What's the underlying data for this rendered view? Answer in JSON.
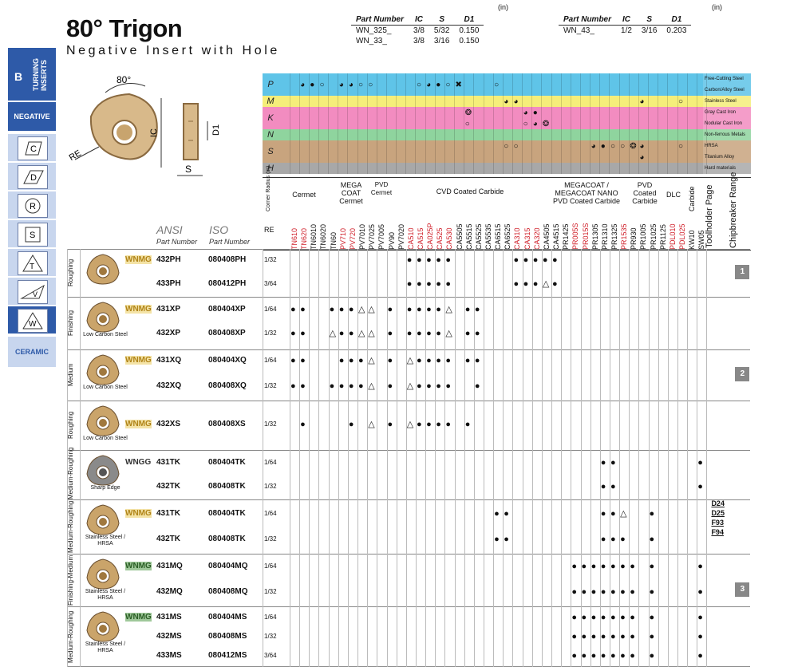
{
  "header": {
    "title": "80° Trigon",
    "subtitle": "Negative Insert with Hole",
    "unit": "(in)",
    "dim_columns": [
      "Part Number",
      "IC",
      "S",
      "D1"
    ],
    "dim_table_1": [
      [
        "WN_325_",
        "3/8",
        "5/32",
        "0.150"
      ],
      [
        "WN_33_",
        "3/8",
        "3/16",
        "0.150"
      ]
    ],
    "dim_table_2": [
      [
        "WN_43_",
        "1/2",
        "3/16",
        "0.203"
      ]
    ]
  },
  "sidebar": {
    "section_letter": "B",
    "section_label": "TURNING INSERTS",
    "negative_label": "NEGATIVE",
    "shapes": [
      "C",
      "D",
      "R",
      "S",
      "T",
      "V",
      "W"
    ],
    "ceramic_label": "CERAMIC"
  },
  "diagram_labels": {
    "angle": "80°",
    "ic": "IC",
    "re": "RE",
    "d1": "D1",
    "s": "S"
  },
  "materials": [
    {
      "letter": "P",
      "names": [
        "Free-Cutting Steel",
        "Carbon/Alloy Steel"
      ],
      "color": "#5fc4e8"
    },
    {
      "letter": "M",
      "names": [
        "Stainless Steel"
      ],
      "color": "#f5ee7a"
    },
    {
      "letter": "K",
      "names": [
        "Gray Cast Iron",
        "Nodular Cast Iron"
      ],
      "color": "#f28cc0"
    },
    {
      "letter": "N",
      "names": [
        "Non-ferrous Metals"
      ],
      "color": "#8fd49e"
    },
    {
      "letter": "S",
      "names": [
        "HRSA",
        "Titanium Alloy"
      ],
      "color": "#c8a47e"
    },
    {
      "letter": "H",
      "names": [
        "Hard materials"
      ],
      "color": "#a8a8a8"
    }
  ],
  "grade_groups": {
    "corner_radius": "Corner Radius (in)",
    "cermet": "Cermet",
    "megacoat_cermet": "MEGA COAT Cermet",
    "pvd_cermet": "PVD Cermet",
    "cvd": "CVD Coated Carbide",
    "megacoat_nano": "MEGACOAT / MEGACOAT NANO PVD Coated Carbide",
    "pvd_carbide": "PVD Coated Carbide",
    "dlc": "DLC",
    "carbide": "Carbide",
    "toolholder": "Toolholder Page",
    "chipbreaker": "Chipbreaker Range",
    "re": "RE"
  },
  "grades": [
    "TN610",
    "TN620",
    "TN6010",
    "TN6020",
    "TN60",
    "PV710",
    "PV720",
    "PV7010",
    "PV7025",
    "PV7005",
    "PV90",
    "PV7020",
    "CA510",
    "CA515",
    "CA025P",
    "CA525",
    "CA530",
    "CA5505",
    "CA5515",
    "CA5525",
    "CA5535",
    "CA6515",
    "CA6525",
    "CA310",
    "CA315",
    "CA320",
    "CA4505",
    "CA4515",
    "PR1425",
    "PR005S",
    "PR015S",
    "PR1305",
    "PR1310",
    "PR1325",
    "PR1535",
    "PR930",
    "PR1005",
    "PR1025",
    "PR1125",
    "PDL010",
    "PDL025",
    "KW10",
    "SW05"
  ],
  "grade_colors": {
    "red": "#d0202a",
    "black": "#111111"
  },
  "col_headers": {
    "ansi": "ANSI",
    "iso": "ISO",
    "part_number": "Part Number"
  },
  "rows": [
    {
      "section": "Roughing",
      "prefix": "WNMG",
      "ansi": "432PH",
      "iso": "080408PH",
      "re": "1/32"
    },
    {
      "section": "",
      "prefix": "",
      "ansi": "433PH",
      "iso": "080412PH",
      "re": "3/64"
    },
    {
      "section": "Finishing",
      "prefix": "WNMG",
      "ansi": "431XP",
      "iso": "080404XP",
      "re": "1/64"
    },
    {
      "section": "",
      "prefix": "",
      "ansi": "432XP",
      "iso": "080408XP",
      "re": "1/32"
    },
    {
      "section": "Medium",
      "prefix": "WNMG",
      "ansi": "431XQ",
      "iso": "080404XQ",
      "re": "1/64"
    },
    {
      "section": "",
      "prefix": "",
      "ansi": "432XQ",
      "iso": "080408XQ",
      "re": "1/32"
    },
    {
      "section": "Roughing",
      "prefix": "WNMG",
      "ansi": "432XS",
      "iso": "080408XS",
      "re": "1/32"
    },
    {
      "section": "Medium-Roughing",
      "prefix": "WNGG",
      "ansi": "431TK",
      "iso": "080404TK",
      "re": "1/64"
    },
    {
      "section": "",
      "prefix": "",
      "ansi": "432TK",
      "iso": "080408TK",
      "re": "1/32"
    },
    {
      "section": "Medium-Roughing",
      "prefix": "WNMG",
      "ansi": "431TK",
      "iso": "080404TK",
      "re": "1/64"
    },
    {
      "section": "",
      "prefix": "",
      "ansi": "432TK",
      "iso": "080408TK",
      "re": "1/32"
    },
    {
      "section": "Finishing-Medium",
      "prefix": "WNMG",
      "ansi": "431MQ",
      "iso": "080404MQ",
      "re": "1/64"
    },
    {
      "section": "",
      "prefix": "",
      "ansi": "432MQ",
      "iso": "080408MQ",
      "re": "1/32"
    },
    {
      "section": "Medium-Roughing",
      "prefix": "WNMG",
      "ansi": "431MS",
      "iso": "080404MS",
      "re": "1/64"
    },
    {
      "section": "",
      "prefix": "",
      "ansi": "432MS",
      "iso": "080408MS",
      "re": "1/32"
    },
    {
      "section": "",
      "prefix": "",
      "ansi": "433MS",
      "iso": "080412MS",
      "re": "3/64"
    }
  ],
  "insert_captions": {
    "xp": "Low Carbon Steel",
    "xq": "Low Carbon Steel",
    "xs": "Low Carbon Steel",
    "tk_g": "Sharp Edge",
    "tk_m": "Stainless Steel / HRSA",
    "mq": "Stainless Steel / HRSA",
    "ms": "Stainless Steel / HRSA"
  },
  "toolholder_pages": [
    "D24",
    "D25",
    "F93",
    "F94"
  ],
  "chipbreaker_ranges": [
    "1",
    "2",
    "3"
  ]
}
